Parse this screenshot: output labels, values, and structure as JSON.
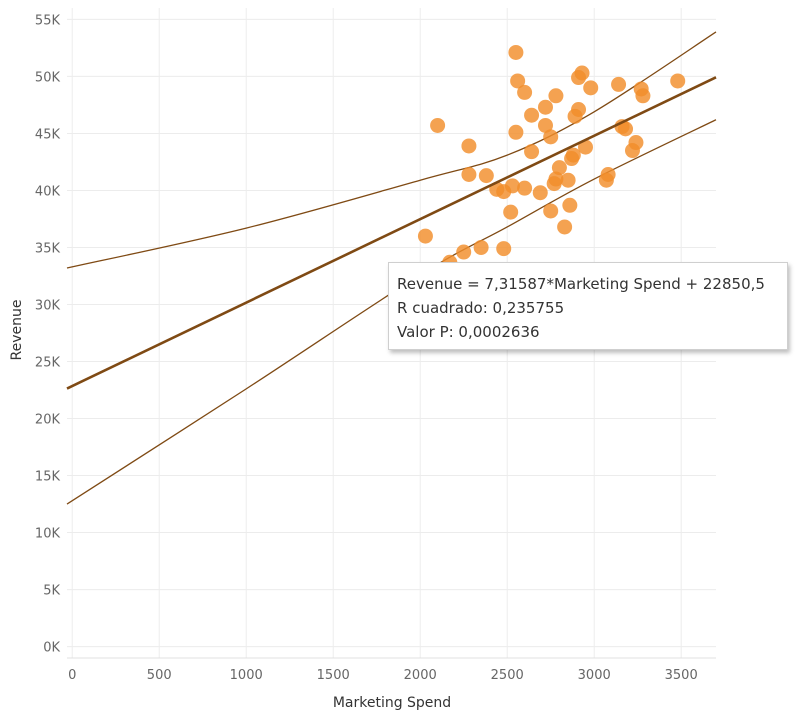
{
  "chart_data": {
    "type": "scatter",
    "title": "",
    "xlabel": "Marketing Spend",
    "ylabel": "Revenue",
    "xlim": [
      -30,
      3700
    ],
    "ylim": [
      -1000,
      56000
    ],
    "x_ticks": [
      0,
      500,
      1000,
      1500,
      2000,
      2500,
      3000,
      3500
    ],
    "x_tick_labels": [
      "0",
      "500",
      "1000",
      "1500",
      "2000",
      "2500",
      "3000",
      "3500"
    ],
    "y_ticks": [
      0,
      5000,
      10000,
      15000,
      20000,
      25000,
      30000,
      35000,
      40000,
      45000,
      50000,
      55000
    ],
    "y_tick_labels": [
      "0K",
      "5K",
      "10K",
      "15K",
      "20K",
      "25K",
      "30K",
      "35K",
      "40K",
      "45K",
      "50K",
      "55K"
    ],
    "grid": true,
    "point_color": "#f28e2b",
    "trend_color": "#7f4a14",
    "points": [
      {
        "x": 2550,
        "y": 52100
      },
      {
        "x": 2930,
        "y": 50300
      },
      {
        "x": 2910,
        "y": 49900
      },
      {
        "x": 2560,
        "y": 49600
      },
      {
        "x": 2980,
        "y": 49000
      },
      {
        "x": 3140,
        "y": 49300
      },
      {
        "x": 3270,
        "y": 48900
      },
      {
        "x": 3480,
        "y": 49600
      },
      {
        "x": 2600,
        "y": 48600
      },
      {
        "x": 2780,
        "y": 48300
      },
      {
        "x": 3280,
        "y": 48300
      },
      {
        "x": 2720,
        "y": 47300
      },
      {
        "x": 2910,
        "y": 47100
      },
      {
        "x": 2640,
        "y": 46600
      },
      {
        "x": 2890,
        "y": 46500
      },
      {
        "x": 2720,
        "y": 45700
      },
      {
        "x": 3160,
        "y": 45600
      },
      {
        "x": 3180,
        "y": 45400
      },
      {
        "x": 2100,
        "y": 45700
      },
      {
        "x": 2550,
        "y": 45100
      },
      {
        "x": 2750,
        "y": 44700
      },
      {
        "x": 2280,
        "y": 43900
      },
      {
        "x": 3240,
        "y": 44200
      },
      {
        "x": 2950,
        "y": 43800
      },
      {
        "x": 3220,
        "y": 43500
      },
      {
        "x": 2640,
        "y": 43400
      },
      {
        "x": 2880,
        "y": 43100
      },
      {
        "x": 2870,
        "y": 42800
      },
      {
        "x": 2800,
        "y": 42000
      },
      {
        "x": 2280,
        "y": 41400
      },
      {
        "x": 2380,
        "y": 41300
      },
      {
        "x": 3080,
        "y": 41400
      },
      {
        "x": 3070,
        "y": 40900
      },
      {
        "x": 2780,
        "y": 41000
      },
      {
        "x": 2850,
        "y": 40900
      },
      {
        "x": 2770,
        "y": 40600
      },
      {
        "x": 2530,
        "y": 40400
      },
      {
        "x": 2600,
        "y": 40200
      },
      {
        "x": 2440,
        "y": 40100
      },
      {
        "x": 2480,
        "y": 39900
      },
      {
        "x": 2690,
        "y": 39800
      },
      {
        "x": 2860,
        "y": 38700
      },
      {
        "x": 2520,
        "y": 38100
      },
      {
        "x": 2750,
        "y": 38200
      },
      {
        "x": 2830,
        "y": 36800
      },
      {
        "x": 2030,
        "y": 36000
      },
      {
        "x": 2350,
        "y": 35000
      },
      {
        "x": 2480,
        "y": 34900
      },
      {
        "x": 2250,
        "y": 34600
      },
      {
        "x": 2170,
        "y": 33700
      }
    ],
    "trend_line": {
      "slope": 7.31587,
      "intercept": 22850.5
    },
    "confidence_band": {
      "upper": [
        {
          "x": -30,
          "y": 33200
        },
        {
          "x": 1000,
          "y": 36700
        },
        {
          "x": 2000,
          "y": 40900
        },
        {
          "x": 2500,
          "y": 43100
        },
        {
          "x": 3000,
          "y": 46900
        },
        {
          "x": 3700,
          "y": 53900
        }
      ],
      "lower": [
        {
          "x": -30,
          "y": 12500
        },
        {
          "x": 1000,
          "y": 22600
        },
        {
          "x": 2000,
          "y": 32600
        },
        {
          "x": 2500,
          "y": 36800
        },
        {
          "x": 3000,
          "y": 41000
        },
        {
          "x": 3700,
          "y": 46200
        }
      ]
    },
    "tooltip": {
      "equation": "Revenue = 7,31587*Marketing Spend + 22850,5",
      "r_squared": "R cuadrado: 0,235755",
      "p_value": "Valor P: 0,0002636"
    }
  }
}
